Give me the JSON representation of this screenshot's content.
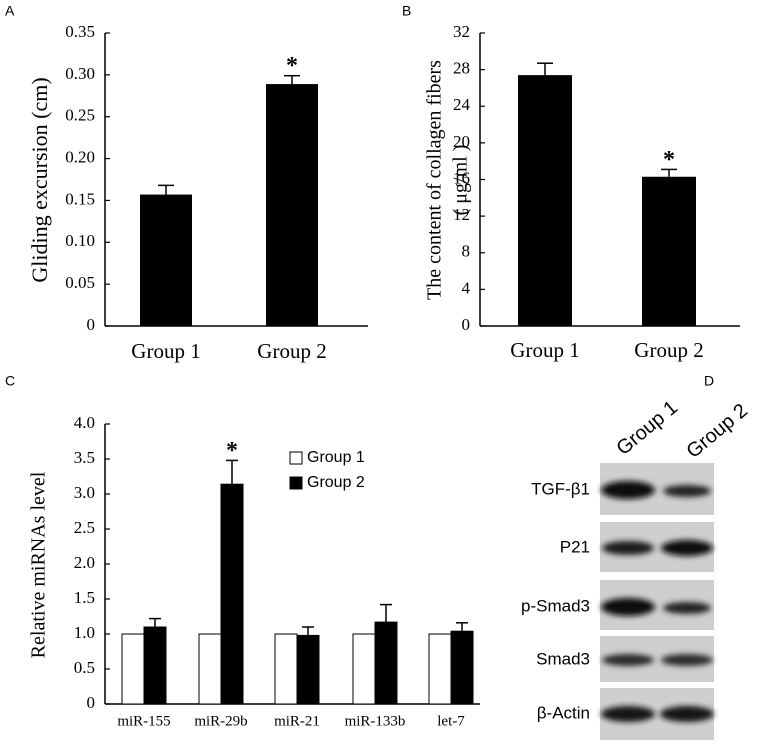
{
  "chart_data": [
    {
      "type": "bar",
      "panel_label": "A",
      "y_label": [
        "Gliding excursion (cm)"
      ],
      "categories": [
        "Group 1",
        "Group 2"
      ],
      "values": [
        0.157,
        0.289
      ],
      "errors": [
        0.011,
        0.01
      ],
      "annotations": [
        null,
        "*"
      ],
      "color": "#000000",
      "ylim": [
        0,
        0.35
      ],
      "yticks": [
        0,
        0.05,
        {
          "value": 0.1,
          "label": "0.10"
        },
        0.15,
        {
          "value": 0.2,
          "label": "0.20"
        },
        0.25,
        {
          "value": 0.3,
          "label": "0.30"
        },
        0.35
      ]
    },
    {
      "type": "bar",
      "panel_label": "B",
      "y_label": [
        "The content of collagen fibers",
        "( μg/ml )"
      ],
      "categories": [
        "Group 1",
        "Group 2"
      ],
      "values": [
        27.4,
        16.3
      ],
      "errors": [
        1.3,
        0.8
      ],
      "annotations": [
        null,
        "*"
      ],
      "color": "#000000",
      "ylim": [
        0,
        32
      ],
      "yticks": [
        0,
        4,
        8,
        12,
        16,
        20,
        24,
        28,
        32
      ]
    },
    {
      "type": "grouped_bar",
      "panel_label": "C",
      "y_label": [
        "Relative miRNAs level"
      ],
      "categories": [
        "miR-155",
        "miR-29b",
        "miR-21",
        "miR-133b",
        "let-7"
      ],
      "series": [
        {
          "name": "Group 1",
          "color": "#ffffff",
          "values": [
            1.0,
            1.0,
            1.0,
            1.0,
            1.0
          ]
        },
        {
          "name": "Group 2",
          "color": "#000000",
          "values": [
            1.1,
            3.14,
            0.98,
            1.17,
            1.04
          ],
          "errors": [
            0.12,
            0.34,
            0.12,
            0.25,
            0.12
          ]
        }
      ],
      "annotations": [
        null,
        "*",
        null,
        null,
        null
      ],
      "ylim": [
        0,
        4
      ],
      "yticks": [
        0,
        0.5,
        {
          "value": 1,
          "label": "1.0"
        },
        1.5,
        {
          "value": 2,
          "label": "2.0"
        },
        2.5,
        {
          "value": 3,
          "label": "3.0"
        },
        3.5,
        {
          "value": 4,
          "label": "4.0"
        }
      ]
    }
  ],
  "blot": {
    "panel_label": "D",
    "columns": [
      "Group 1",
      "Group 2"
    ],
    "rows": [
      "TGF-β1",
      "P21",
      "p-Smad3",
      "Smad3",
      "β-Actin"
    ]
  }
}
